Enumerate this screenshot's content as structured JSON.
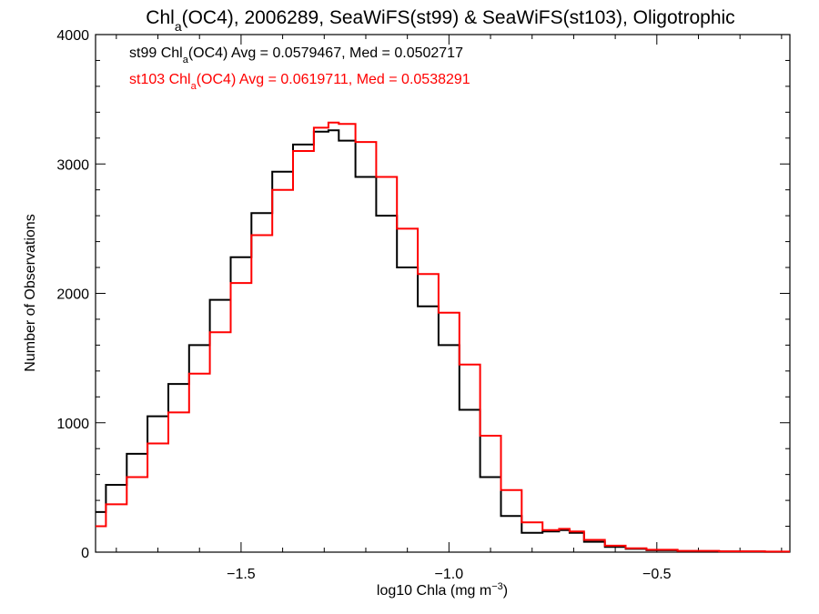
{
  "chart_data": {
    "type": "line",
    "title_parts": {
      "pre": "Chl",
      "sub": "a",
      "post": "(OC4), 2006289, SeaWiFS(st99) & SeaWiFS(st103), Oligotrophic"
    },
    "xlabel_parts": {
      "pre": "log10 Chla (mg m",
      "sup": "−3",
      "post": ")"
    },
    "ylabel": "Number of Observations",
    "xlim": [
      -1.85,
      -0.18
    ],
    "ylim": [
      0,
      4000
    ],
    "xticks": [
      -1.5,
      -1.0,
      -0.5
    ],
    "xtick_labels": [
      "−1.5",
      "−1.0",
      "−0.5"
    ],
    "yticks": [
      0,
      1000,
      2000,
      3000,
      4000
    ],
    "ytick_labels": [
      "0",
      "1000",
      "2000",
      "3000",
      "4000"
    ],
    "x_minor_step": 0.1,
    "y_minor_step": 200,
    "grid": false,
    "legend_position": "top-left",
    "series": [
      {
        "name_parts": {
          "pre": "st99 Chl",
          "sub": "a",
          "post": "(OC4) Avg = 0.0579467, Med = 0.0502717"
        },
        "color": "#000000",
        "x": [
          -1.85,
          -1.8,
          -1.75,
          -1.7,
          -1.65,
          -1.6,
          -1.55,
          -1.5,
          -1.45,
          -1.4,
          -1.35,
          -1.3,
          -1.28,
          -1.25,
          -1.2,
          -1.15,
          -1.1,
          -1.05,
          -1.0,
          -0.95,
          -0.9,
          -0.85,
          -0.8,
          -0.75,
          -0.72,
          -0.7,
          -0.65,
          -0.6,
          -0.55,
          -0.5,
          -0.4,
          -0.3,
          -0.18
        ],
        "values": [
          310,
          520,
          760,
          1050,
          1300,
          1600,
          1950,
          2280,
          2620,
          2940,
          3150,
          3250,
          3260,
          3180,
          2900,
          2600,
          2200,
          1900,
          1600,
          1100,
          580,
          280,
          150,
          160,
          170,
          150,
          80,
          40,
          25,
          15,
          8,
          5,
          3
        ]
      },
      {
        "name_parts": {
          "pre": "st103 Chl",
          "sub": "a",
          "post": "(OC4) Avg = 0.0619711, Med = 0.0538291"
        },
        "color": "#ff0000",
        "x": [
          -1.85,
          -1.8,
          -1.75,
          -1.7,
          -1.65,
          -1.6,
          -1.55,
          -1.5,
          -1.45,
          -1.4,
          -1.35,
          -1.3,
          -1.28,
          -1.25,
          -1.2,
          -1.15,
          -1.1,
          -1.05,
          -1.0,
          -0.95,
          -0.9,
          -0.85,
          -0.8,
          -0.75,
          -0.72,
          -0.7,
          -0.65,
          -0.6,
          -0.55,
          -0.5,
          -0.4,
          -0.3,
          -0.18
        ],
        "values": [
          200,
          370,
          580,
          840,
          1080,
          1380,
          1700,
          2080,
          2450,
          2800,
          3100,
          3280,
          3320,
          3310,
          3170,
          2900,
          2500,
          2150,
          1850,
          1450,
          900,
          480,
          230,
          170,
          180,
          160,
          95,
          50,
          30,
          18,
          10,
          6,
          4
        ]
      }
    ]
  }
}
